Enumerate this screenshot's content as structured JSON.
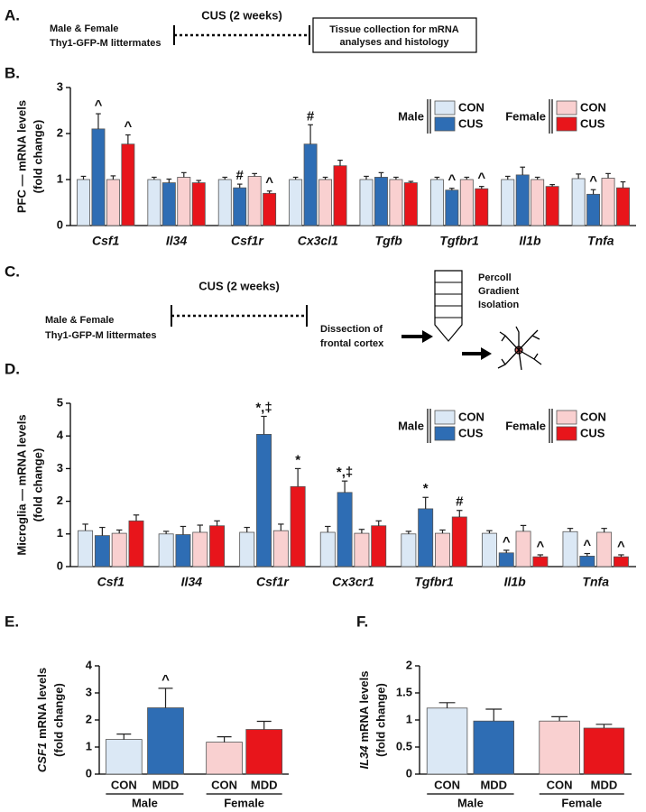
{
  "diagram_a": {
    "panel": "A.",
    "subjects": [
      "Male & Female",
      "Thy1-GFP-M littermates"
    ],
    "period": "CUS (2 weeks)",
    "outcome": [
      "Tissue collection for mRNA",
      "analyses and histology"
    ]
  },
  "diagram_c": {
    "panel": "C.",
    "subjects": [
      "Male & Female",
      "Thy1-GFP-M littermates"
    ],
    "period": "CUS (2 weeks)",
    "dissection": [
      "Dissection of",
      "frontal cortex"
    ],
    "isolation": [
      "Percoll",
      "Gradient",
      "Isolation"
    ]
  },
  "chart_data": [
    {
      "type": "bar",
      "panel": "B.",
      "ylabel": [
        "PFC — mRNA levels",
        "(fold change)"
      ],
      "categories": [
        "Csf1",
        "Il34",
        "Csf1r",
        "Cx3cl1",
        "Tgfb",
        "Tgfbr1",
        "Il1b",
        "Tnfa"
      ],
      "ylim": [
        0,
        3
      ],
      "yticks": [
        0,
        1,
        2,
        3
      ],
      "series": [
        {
          "name": "CON",
          "group": "Male",
          "color": "#dbe8f5",
          "values": [
            1.0,
            1.0,
            1.0,
            1.0,
            1.0,
            1.0,
            1.0,
            1.02
          ],
          "errors": [
            0.07,
            0.05,
            0.05,
            0.05,
            0.07,
            0.05,
            0.07,
            0.1
          ],
          "marks": [
            null,
            null,
            null,
            null,
            null,
            null,
            null,
            null
          ]
        },
        {
          "name": "CUS",
          "group": "Male",
          "color": "#2e6db4",
          "values": [
            2.1,
            0.93,
            0.82,
            1.77,
            1.05,
            0.77,
            1.1,
            0.68
          ],
          "errors": [
            0.33,
            0.08,
            0.08,
            0.42,
            0.1,
            0.04,
            0.17,
            0.1
          ],
          "marks": [
            "^",
            null,
            "#",
            "#",
            null,
            "^",
            null,
            "^"
          ]
        },
        {
          "name": "CON",
          "group": "Female",
          "color": "#f9d0d0",
          "values": [
            1.0,
            1.05,
            1.07,
            1.0,
            1.0,
            1.0,
            1.0,
            1.03
          ],
          "errors": [
            0.08,
            0.1,
            0.06,
            0.05,
            0.05,
            0.05,
            0.05,
            0.1
          ],
          "marks": [
            null,
            null,
            null,
            null,
            null,
            null,
            null,
            null
          ]
        },
        {
          "name": "CUS",
          "group": "Female",
          "color": "#e8151b",
          "values": [
            1.77,
            0.93,
            0.7,
            1.3,
            0.93,
            0.8,
            0.85,
            0.82
          ],
          "errors": [
            0.2,
            0.05,
            0.05,
            0.12,
            0.03,
            0.05,
            0.04,
            0.13
          ],
          "marks": [
            "^",
            null,
            "^",
            null,
            null,
            "^",
            null,
            null
          ]
        }
      ]
    },
    {
      "type": "bar",
      "panel": "D.",
      "ylabel": [
        "Microglia — mRNA levels",
        "(fold change)"
      ],
      "categories": [
        "Csf1",
        "Il34",
        "Csf1r",
        "Cx3cr1",
        "Tgfbr1",
        "Il1b",
        "Tnfa"
      ],
      "ylim": [
        0,
        5
      ],
      "yticks": [
        0,
        1,
        2,
        3,
        4,
        5
      ],
      "series": [
        {
          "name": "CON",
          "group": "Male",
          "color": "#dbe8f5",
          "values": [
            1.1,
            1.0,
            1.05,
            1.05,
            1.0,
            1.02,
            1.07
          ],
          "errors": [
            0.2,
            0.08,
            0.15,
            0.18,
            0.08,
            0.08,
            0.1
          ],
          "marks": [
            null,
            null,
            null,
            null,
            null,
            null,
            null
          ]
        },
        {
          "name": "CUS",
          "group": "Male",
          "color": "#2e6db4",
          "values": [
            0.95,
            0.98,
            4.05,
            2.27,
            1.77,
            0.42,
            0.32
          ],
          "errors": [
            0.25,
            0.25,
            0.55,
            0.35,
            0.35,
            0.08,
            0.08
          ],
          "marks": [
            null,
            null,
            "*,‡",
            "*,‡",
            "*",
            "^",
            "^"
          ]
        },
        {
          "name": "CON",
          "group": "Female",
          "color": "#f9d0d0",
          "values": [
            1.02,
            1.05,
            1.1,
            1.02,
            1.02,
            1.08,
            1.05
          ],
          "errors": [
            0.1,
            0.22,
            0.2,
            0.12,
            0.1,
            0.18,
            0.12
          ],
          "marks": [
            null,
            null,
            null,
            null,
            null,
            null,
            null
          ]
        },
        {
          "name": "CUS",
          "group": "Female",
          "color": "#e8151b",
          "values": [
            1.4,
            1.25,
            2.45,
            1.25,
            1.52,
            0.3,
            0.3
          ],
          "errors": [
            0.18,
            0.15,
            0.55,
            0.15,
            0.2,
            0.06,
            0.06
          ],
          "marks": [
            null,
            null,
            "*",
            null,
            "#",
            "^",
            "^"
          ]
        }
      ]
    },
    {
      "type": "bar",
      "panel": "E.",
      "ylabel_gene": "CSF1",
      "ylabel": [
        "mRNA levels",
        "(fold change)"
      ],
      "categories": [
        "CON",
        "MDD",
        "CON",
        "MDD"
      ],
      "groups": [
        "Male",
        "Female"
      ],
      "colors": [
        "#dbe8f5",
        "#2e6db4",
        "#f9d0d0",
        "#e8151b"
      ],
      "values": [
        1.28,
        2.45,
        1.18,
        1.65
      ],
      "errors": [
        0.2,
        0.72,
        0.2,
        0.3
      ],
      "marks": [
        null,
        "^",
        null,
        null
      ],
      "ylim": [
        0,
        4
      ],
      "yticks": [
        0,
        1,
        2,
        3,
        4
      ]
    },
    {
      "type": "bar",
      "panel": "F.",
      "ylabel_gene": "IL34",
      "ylabel": [
        "mRNA levels",
        "(fold change)"
      ],
      "categories": [
        "CON",
        "MDD",
        "CON",
        "MDD"
      ],
      "groups": [
        "Male",
        "Female"
      ],
      "colors": [
        "#dbe8f5",
        "#2e6db4",
        "#f9d0d0",
        "#e8151b"
      ],
      "values": [
        1.22,
        0.98,
        0.98,
        0.85
      ],
      "errors": [
        0.1,
        0.22,
        0.08,
        0.07
      ],
      "marks": [
        null,
        null,
        null,
        null
      ],
      "ylim": [
        0,
        2
      ],
      "yticks": [
        0,
        0.5,
        1,
        1.5,
        2
      ]
    }
  ]
}
